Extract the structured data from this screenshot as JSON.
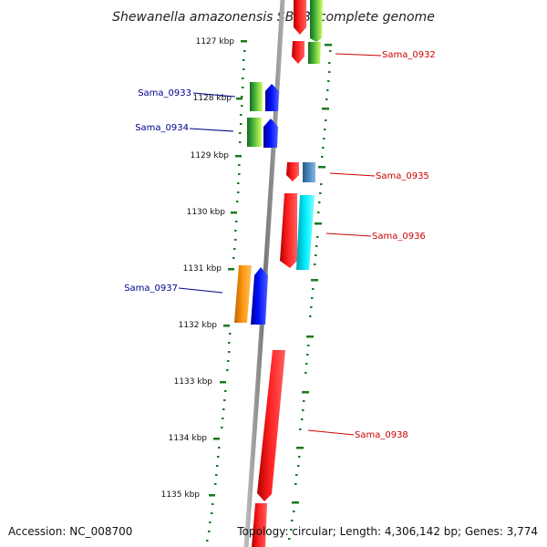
{
  "title": "Shewanella amazonensis SB2B, complete genome",
  "footer": {
    "accession": "Accession: NC_008700",
    "summary": "Topology: circular; Length: 4,306,142 bp; Genes: 3,774"
  },
  "ticks": [
    "1127 kbp",
    "1128 kbp",
    "1129 kbp",
    "1130 kbp",
    "1131 kbp",
    "1132 kbp",
    "1133 kbp",
    "1134 kbp",
    "1135 kbp"
  ],
  "genes": [
    {
      "name": "Sama_0932",
      "strand": "forward"
    },
    {
      "name": "Sama_0933",
      "strand": "reverse"
    },
    {
      "name": "Sama_0934",
      "strand": "reverse"
    },
    {
      "name": "Sama_0935",
      "strand": "forward"
    },
    {
      "name": "Sama_0936",
      "strand": "forward"
    },
    {
      "name": "Sama_0937",
      "strand": "reverse"
    },
    {
      "name": "Sama_0938",
      "strand": "forward"
    }
  ],
  "colors": {
    "backbone": "#888888",
    "tick": "#1a7a1a",
    "cds": "#ff0000",
    "gene": "#0000ff",
    "green_feature": "#2f9a2f",
    "cyan_feature": "#00e5ee",
    "steelblue_feature": "#4682b4",
    "orange_feature": "#ff8c00",
    "fwd_label": "#cc0000",
    "rev_label": "#00008b"
  }
}
